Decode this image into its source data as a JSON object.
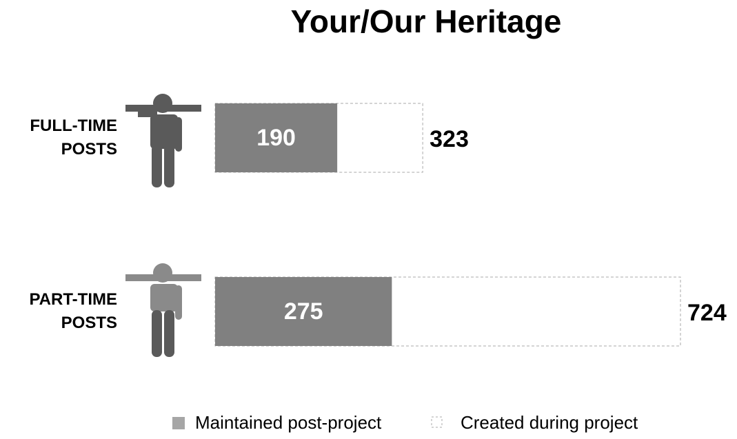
{
  "chart_data": {
    "type": "bar",
    "orientation": "horizontal",
    "overlap": true,
    "title": "Your/Our Heritage",
    "categories": [
      "FULL-TIME POSTS",
      "PART-TIME POSTS"
    ],
    "series": [
      {
        "name": "Maintained post-project",
        "color": "#808080",
        "values": [
          190,
          275
        ]
      },
      {
        "name": "Created during project",
        "color": "#ffffff",
        "values": [
          323,
          724
        ]
      }
    ]
  }
}
